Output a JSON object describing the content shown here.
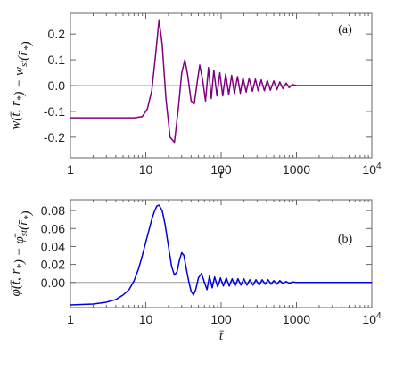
{
  "chart_data": [
    {
      "id": "a",
      "type": "line",
      "label": "(a)",
      "xlabel": "t̄",
      "ylabel_main": "w(t̄, r̄",
      "ylabel_sub1": "*",
      "ylabel_mid": ") − w",
      "ylabel_sub2": "st",
      "ylabel_tail": "(r̄",
      "ylabel_sub3": "*",
      "ylabel_end": ")",
      "x_scale": "log",
      "xlim": [
        1,
        10000
      ],
      "ylim": [
        -0.28,
        0.28
      ],
      "x_ticks": [
        {
          "value": 1,
          "label": "1"
        },
        {
          "value": 10,
          "label": "10"
        },
        {
          "value": 100,
          "label": "100"
        },
        {
          "value": 1000,
          "label": "1000"
        },
        {
          "value": 10000,
          "label": "10",
          "sup": "4"
        }
      ],
      "y_ticks": [
        {
          "value": -0.2,
          "label": "-0.2"
        },
        {
          "value": -0.1,
          "label": "-0.1"
        },
        {
          "value": 0.0,
          "label": "0.0"
        },
        {
          "value": 0.1,
          "label": "0.1"
        },
        {
          "value": 0.2,
          "label": "0.2"
        }
      ],
      "color": "#800080",
      "series": [
        {
          "x": [
            1,
            7,
            9,
            10.5,
            12,
            13.5,
            15,
            16.5,
            18.5,
            21,
            24,
            27,
            30,
            33,
            36,
            40,
            44,
            48,
            52,
            57,
            62,
            68,
            74,
            80,
            88,
            96,
            105,
            115,
            126,
            138,
            150,
            165,
            180,
            195,
            215,
            235,
            260,
            285,
            310,
            340,
            375,
            410,
            450,
            500,
            550,
            600,
            660,
            730,
            800,
            880,
            1000,
            1500,
            10000
          ],
          "y": [
            -0.125,
            -0.125,
            -0.12,
            -0.09,
            -0.02,
            0.12,
            0.255,
            0.16,
            -0.05,
            -0.2,
            -0.22,
            -0.09,
            0.05,
            0.1,
            0.04,
            -0.06,
            -0.07,
            0.01,
            0.08,
            0.02,
            -0.06,
            0.07,
            -0.05,
            0.06,
            -0.04,
            0.05,
            -0.04,
            0.045,
            -0.035,
            0.04,
            -0.03,
            0.035,
            -0.03,
            0.03,
            -0.025,
            0.028,
            -0.022,
            0.025,
            -0.02,
            0.022,
            -0.02,
            0.02,
            -0.018,
            0.018,
            -0.016,
            0.014,
            -0.012,
            0.01,
            -0.008,
            0.004,
            0.0,
            0.0,
            0.0
          ]
        }
      ]
    },
    {
      "id": "b",
      "type": "line",
      "label": "(b)",
      "xlabel": "t̄",
      "ylabel_main": "φ̄(t̄, r̄",
      "ylabel_sub1": "*",
      "ylabel_mid": ") − φ̄",
      "ylabel_sub2": "st",
      "ylabel_tail": "(r̄",
      "ylabel_sub3": "*",
      "ylabel_end": ")",
      "x_scale": "log",
      "xlim": [
        1,
        10000
      ],
      "ylim": [
        -0.028,
        0.092
      ],
      "x_ticks": [
        {
          "value": 1,
          "label": "1"
        },
        {
          "value": 10,
          "label": "10"
        },
        {
          "value": 100,
          "label": "100"
        },
        {
          "value": 1000,
          "label": "1000"
        },
        {
          "value": 10000,
          "label": "10",
          "sup": "4"
        }
      ],
      "y_ticks": [
        {
          "value": 0.0,
          "label": "0.00"
        },
        {
          "value": 0.02,
          "label": "0.02"
        },
        {
          "value": 0.04,
          "label": "0.04"
        },
        {
          "value": 0.06,
          "label": "0.06"
        },
        {
          "value": 0.08,
          "label": "0.08"
        }
      ],
      "color": "#0000e0",
      "series": [
        {
          "x": [
            1,
            2,
            3,
            4,
            5,
            6,
            7,
            8,
            9,
            10,
            11,
            12,
            13,
            14,
            15,
            16.5,
            18,
            20,
            22,
            24,
            26,
            28,
            30,
            32,
            34,
            37,
            40,
            43,
            46,
            50,
            55,
            60,
            65,
            70,
            76,
            82,
            90,
            98,
            107,
            117,
            128,
            140,
            153,
            167,
            183,
            200,
            220,
            240,
            265,
            290,
            320,
            350,
            385,
            420,
            460,
            500,
            550,
            600,
            660,
            730,
            800,
            900,
            1000,
            1500,
            10000
          ],
          "y": [
            -0.025,
            -0.024,
            -0.022,
            -0.019,
            -0.014,
            -0.008,
            0.002,
            0.015,
            0.03,
            0.045,
            0.058,
            0.07,
            0.079,
            0.085,
            0.086,
            0.08,
            0.065,
            0.04,
            0.018,
            0.008,
            0.012,
            0.025,
            0.033,
            0.03,
            0.018,
            0.002,
            -0.01,
            -0.014,
            -0.008,
            0.005,
            0.01,
            0.0,
            -0.008,
            0.007,
            -0.006,
            0.006,
            -0.005,
            0.005,
            -0.004,
            0.005,
            -0.004,
            0.004,
            -0.004,
            0.004,
            -0.003,
            0.004,
            -0.003,
            0.003,
            -0.003,
            0.003,
            -0.003,
            0.003,
            -0.002,
            0.003,
            -0.002,
            0.002,
            -0.002,
            0.002,
            -0.001,
            0.001,
            -0.001,
            0.0005,
            0.0,
            0.0,
            0.0
          ]
        }
      ]
    }
  ]
}
